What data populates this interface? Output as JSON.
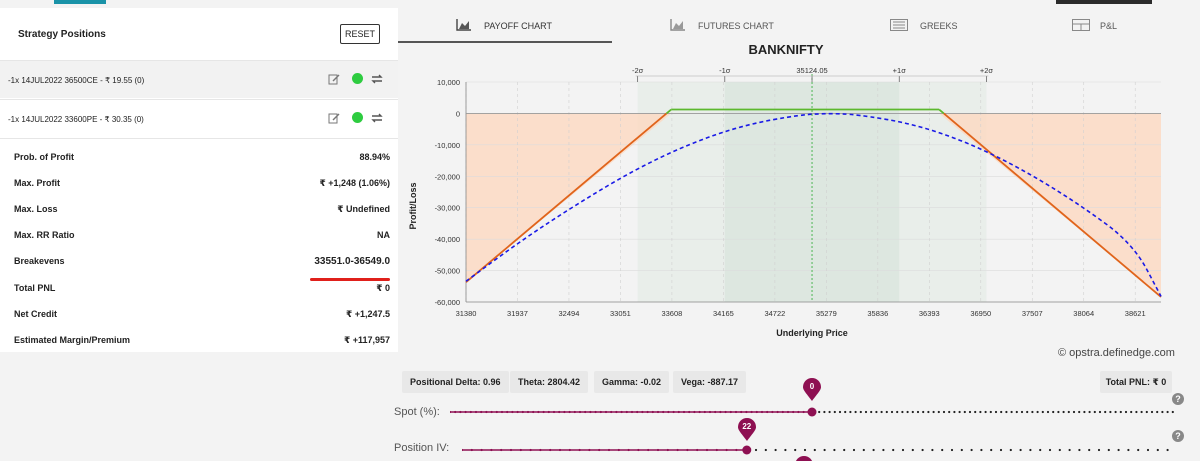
{
  "left_panel": {
    "title": "Strategy Positions",
    "reset_label": "RESET",
    "positions": [
      {
        "text": "-1x  14JUL2022  36500CE  - ₹ 19.55   (0)"
      },
      {
        "text": "-1x  14JUL2022  33600PE  - ₹ 30.35   (0)"
      }
    ],
    "metrics": [
      {
        "label": "Prob. of Profit",
        "value": "88.94%"
      },
      {
        "label": "Max. Profit",
        "value": "₹ +1,248 (1.06%)"
      },
      {
        "label": "Max. Loss",
        "value": "₹ Undefined"
      },
      {
        "label": "Max. RR Ratio",
        "value": "NA"
      },
      {
        "label": "Breakevens",
        "value": "33551.0-36549.0"
      },
      {
        "label": "Total PNL",
        "value": "₹ 0"
      },
      {
        "label": "Net Credit",
        "value": "₹ +1,247.5"
      },
      {
        "label": "Estimated Margin/Premium",
        "value": "₹ +117,957"
      }
    ]
  },
  "tabs": [
    {
      "label": "PAYOFF CHART",
      "icon": "area-chart-icon"
    },
    {
      "label": "FUTURES CHART",
      "icon": "area-chart-icon"
    },
    {
      "label": "GREEKS",
      "icon": "table-icon"
    },
    {
      "label": "P&L",
      "icon": "grid-icon"
    }
  ],
  "chart_data": {
    "type": "line",
    "title": "BANKNIFTY",
    "xlabel": "Underlying Price",
    "ylabel": "Profit/Loss",
    "xlim": [
      31380,
      38900
    ],
    "ylim": [
      -60000,
      10000
    ],
    "x_ticks": [
      31380,
      31937,
      32494,
      33051,
      33608,
      34165,
      34722,
      35279,
      35836,
      36393,
      36950,
      37507,
      38064,
      38621
    ],
    "y_ticks": [
      10000,
      0,
      -10000,
      -20000,
      -30000,
      -40000,
      -50000,
      -60000
    ],
    "y_tick_labels": [
      "10,000",
      "0",
      "-10,000",
      "-20,000",
      "-30,000",
      "-40,000",
      "-50,000",
      "-60,000"
    ],
    "spot": 35124.05,
    "sigma_marks": [
      {
        "label": "-2σ",
        "x": 33237
      },
      {
        "label": "-1σ",
        "x": 34180
      },
      {
        "label": "35124.05",
        "x": 35124.05
      },
      {
        "label": "+1σ",
        "x": 36068
      },
      {
        "label": "+2σ",
        "x": 37011
      }
    ],
    "one_sigma_band": [
      34180,
      36068
    ],
    "two_sigma_band": [
      33237,
      37011
    ],
    "strikes": [
      33600,
      36500
    ],
    "max_profit": 1248,
    "expiry_payoff": {
      "points": [
        [
          31380,
          -53700
        ],
        [
          33600,
          1248
        ],
        [
          36500,
          1248
        ],
        [
          38900,
          -58400
        ]
      ]
    },
    "target_payoff": {
      "points": [
        [
          31380,
          -53400
        ],
        [
          32000,
          -40000
        ],
        [
          32600,
          -28500
        ],
        [
          33200,
          -18000
        ],
        [
          33800,
          -9600
        ],
        [
          34400,
          -3600
        ],
        [
          35000,
          -400
        ],
        [
          35300,
          0
        ],
        [
          35600,
          -300
        ],
        [
          36200,
          -3200
        ],
        [
          36800,
          -9100
        ],
        [
          37400,
          -17800
        ],
        [
          38000,
          -28600
        ],
        [
          38600,
          -41500
        ],
        [
          38900,
          -58200
        ]
      ]
    },
    "colors": {
      "profit": "#5cb82e",
      "loss": "#e0641b",
      "target": "#1a1ae6",
      "loss_fill": "#fbd9c3",
      "band": "#dde7e0"
    }
  },
  "credit": "© opstra.definedge.com",
  "stats": [
    {
      "label": "Positional Delta: 0.96"
    },
    {
      "label": "Theta: 2804.42"
    },
    {
      "label": "Gamma: -0.02"
    },
    {
      "label": "Vega: -887.17"
    }
  ],
  "total_pnl": "Total PNL: ₹ 0",
  "sliders": {
    "spot": {
      "label": "Spot (%):",
      "value": "0",
      "fraction": 0.5
    },
    "iv": {
      "label": "Position IV:",
      "value": "22",
      "fraction": 0.4
    }
  }
}
